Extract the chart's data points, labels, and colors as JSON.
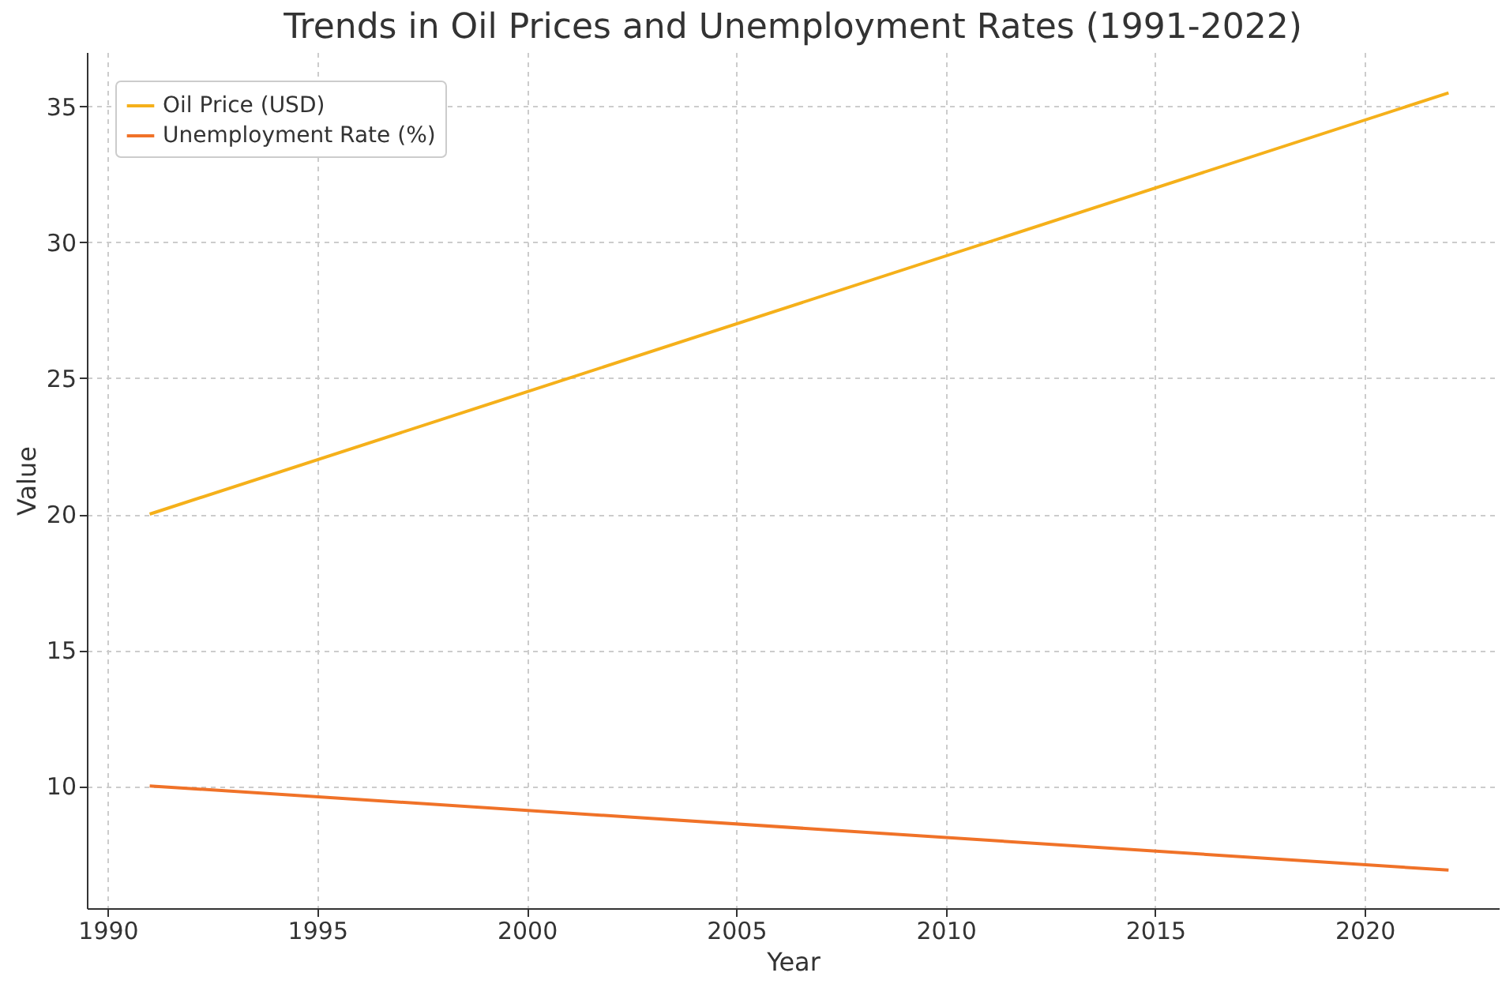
{
  "chart_data": {
    "type": "line",
    "title": "Trends in Oil Prices and Unemployment Rates (1991-2022)",
    "xlabel": "Year",
    "ylabel": "Value",
    "x": [
      1991,
      2022
    ],
    "series": [
      {
        "name": "Oil Price (USD)",
        "color": "#f5b01a",
        "values": [
          20,
          35.5
        ]
      },
      {
        "name": "Unemployment Rate (%)",
        "color": "#f07228",
        "values": [
          10,
          6.9
        ]
      }
    ],
    "xlim": [
      1989.5,
      2023.2
    ],
    "xticks": [
      1990,
      1995,
      2000,
      2005,
      2010,
      2015,
      2020
    ],
    "ylim": [
      5.5,
      37
    ],
    "yticks": [
      10,
      15,
      20,
      25,
      30,
      35
    ],
    "grid": true,
    "legend": "top left",
    "line_style": "solid",
    "marker": "none"
  }
}
